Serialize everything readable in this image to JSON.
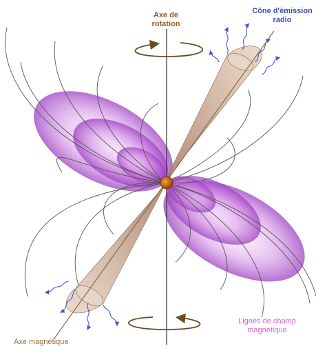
{
  "labels": {
    "rotation_axis": [
      "Axe de",
      "rotation"
    ],
    "emission_cone": [
      "Cône d'émission",
      "radio"
    ],
    "magnetic_axis": "Axe magnétique",
    "field_lines": [
      "Lignes de champ",
      "magnétique"
    ]
  },
  "colors": {
    "field_glow": "#c060e0",
    "cone": "#c8a88a",
    "axis": "#8a6a40",
    "star": "#c06010",
    "radio_waves": "#3a5ad0",
    "rotation_label": "#9a5a20",
    "cone_label": "#3a4fb0",
    "field_label": "#d060d8"
  }
}
